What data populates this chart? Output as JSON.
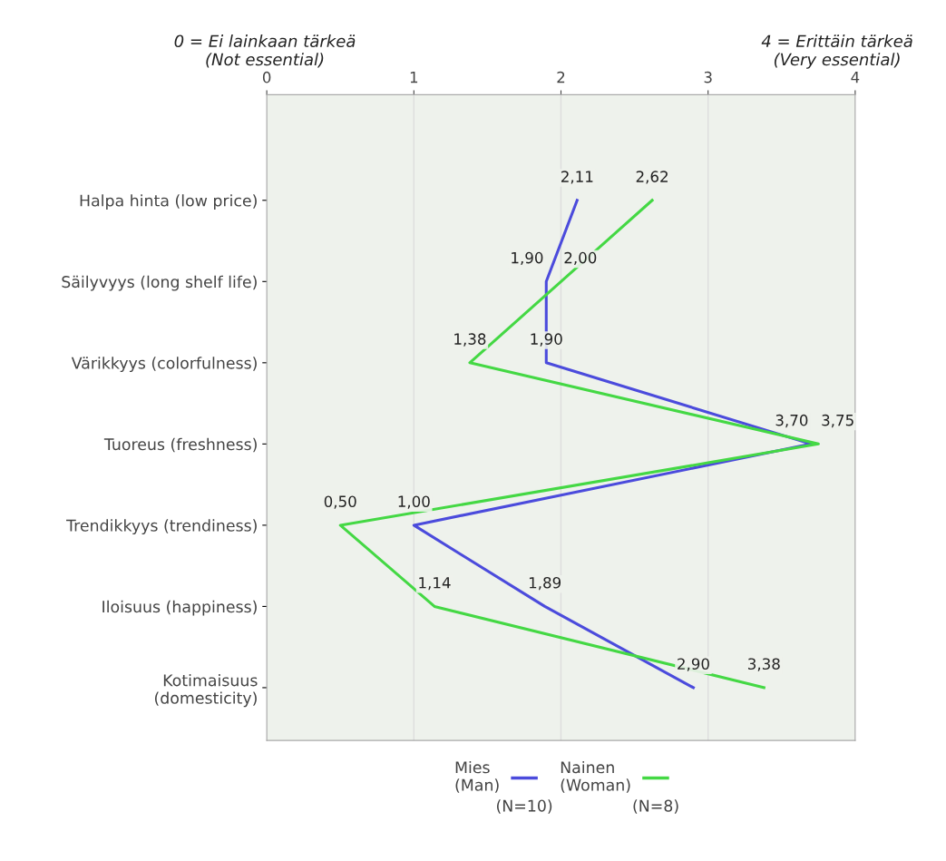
{
  "chart_data": {
    "type": "line",
    "orientation": "horizontal",
    "categories": [
      "Halpa hinta (low price)",
      "Säilyvyys (long shelf life)",
      "Värikkyys (colorfulness)",
      "Tuoreus (freshness)",
      "Trendikkyys (trendiness)",
      "Iloisuus (happiness)",
      "Kotimaisuus\n(domesticity)"
    ],
    "series": [
      {
        "name": "Mies\n(Man)",
        "color": "#4b4bdc",
        "values": [
          2.11,
          1.9,
          1.9,
          3.7,
          1.0,
          1.89,
          2.9
        ],
        "value_labels": [
          "2,11",
          "1,90",
          "1,90",
          "3,70",
          "1,00",
          "1,89",
          "2,90"
        ]
      },
      {
        "name": "Nainen\n(Woman)",
        "color": "#44d844",
        "values": [
          2.62,
          2.0,
          1.38,
          3.75,
          0.5,
          1.14,
          3.38
        ],
        "value_labels": [
          "2,62",
          "2,00",
          "1,38",
          "3,75",
          "0,50",
          "1,14",
          "3,38"
        ]
      }
    ],
    "xlim": [
      0,
      4
    ],
    "xticks": [
      0,
      1,
      2,
      3,
      4
    ],
    "grid": "x",
    "legend": "bottom",
    "marker": "none",
    "line_style": "solid",
    "annotations": [
      "0 = Ei lainkaan tärkeä\n(Not essential)",
      "4 = Erittäin tärkeä\n(Very essential)",
      "(N=10)",
      "(N=8)"
    ]
  }
}
